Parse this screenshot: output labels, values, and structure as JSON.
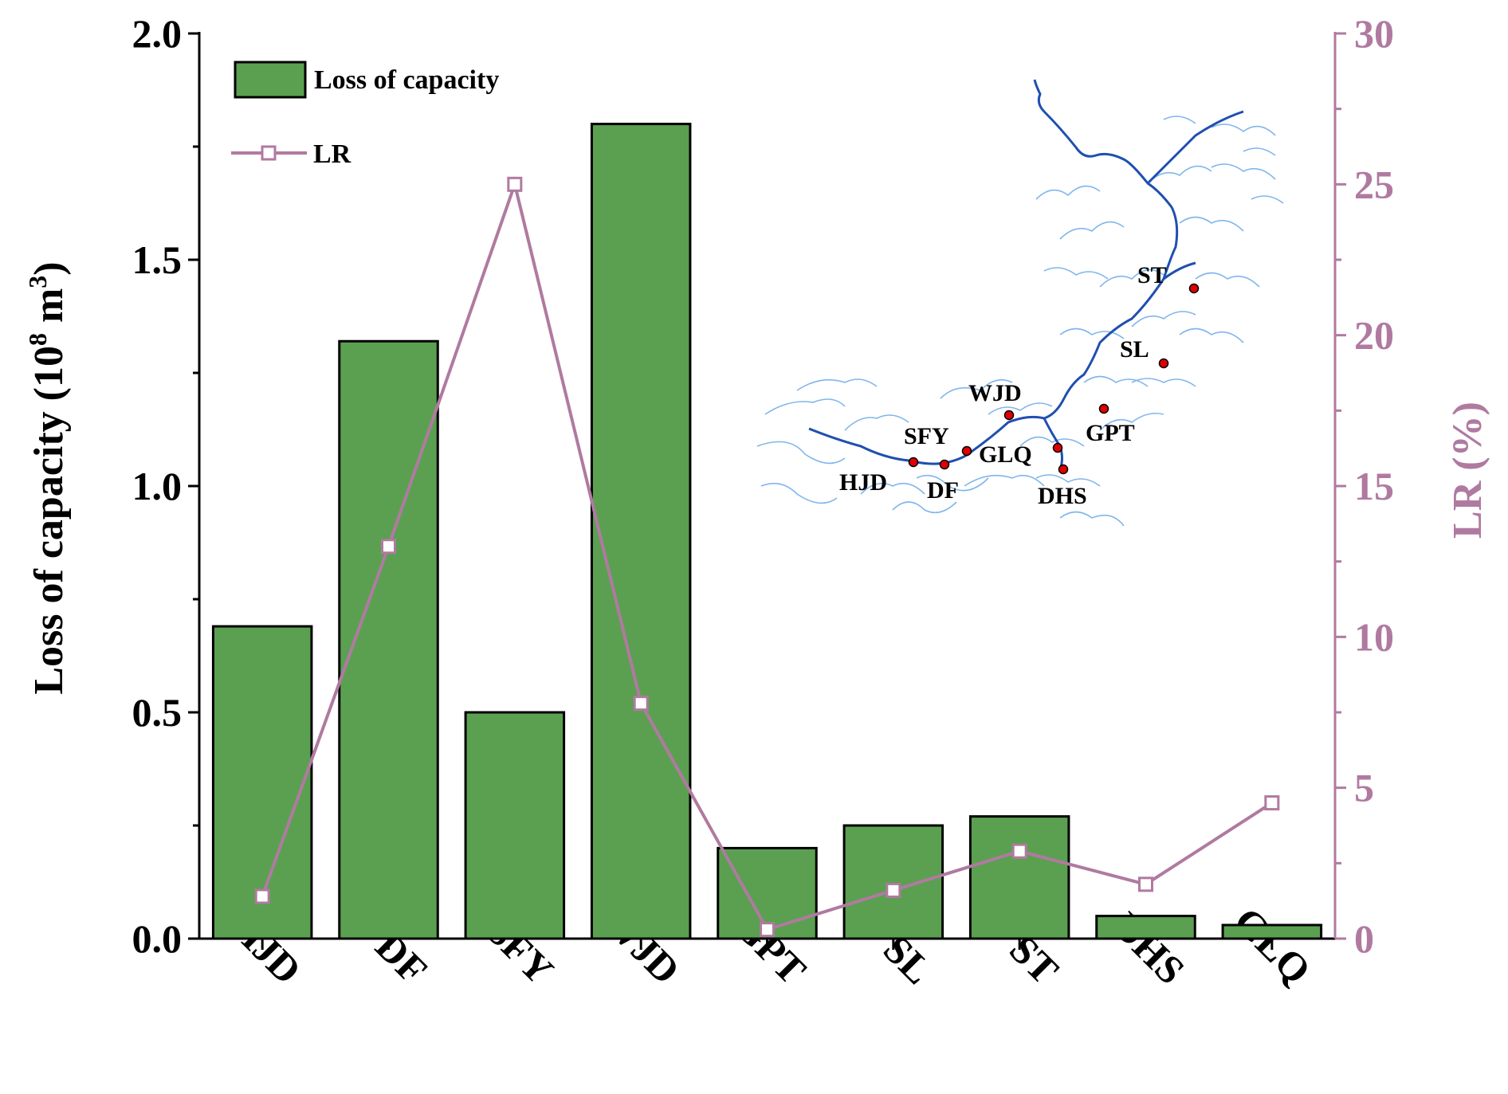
{
  "chart_data": {
    "type": "bar",
    "categories": [
      "HJD",
      "DF",
      "SFY",
      "WJD",
      "GPT",
      "SL",
      "ST",
      "DHS",
      "GLQ"
    ],
    "series": [
      {
        "name": "Loss of capacity",
        "type": "bar",
        "axis": "left",
        "values": [
          0.69,
          1.32,
          0.5,
          1.8,
          0.2,
          0.25,
          0.27,
          0.05,
          0.03
        ]
      },
      {
        "name": "LR",
        "type": "line",
        "axis": "right",
        "values": [
          1.4,
          13.0,
          25.0,
          7.8,
          0.3,
          1.6,
          2.9,
          1.8,
          4.5
        ]
      }
    ],
    "ylabel": "Loss of capacity (10",
    "ylabel_sup1": "8",
    "ylabel_mid": " m",
    "ylabel_sup2": "3",
    "ylabel_end": ")",
    "y2label": "LR (%)",
    "ylim": [
      0,
      2.0
    ],
    "y2lim": [
      0,
      30
    ],
    "yticks": [
      "0.0",
      "0.5",
      "1.0",
      "1.5",
      "2.0"
    ],
    "y2ticks": [
      "0",
      "5",
      "10",
      "15",
      "20",
      "25",
      "30"
    ],
    "legend": {
      "bar_label": "Loss of capacity",
      "line_label": "LR",
      "placement": "top-left"
    },
    "colors": {
      "bar": "#5aa050",
      "line": "#b07aa0",
      "right_axis": "#b07aa0"
    },
    "inset_map": {
      "stations": [
        "HJD",
        "DF",
        "SFY",
        "GLQ",
        "WJD",
        "DHS",
        "GPT",
        "SL",
        "ST"
      ]
    }
  }
}
